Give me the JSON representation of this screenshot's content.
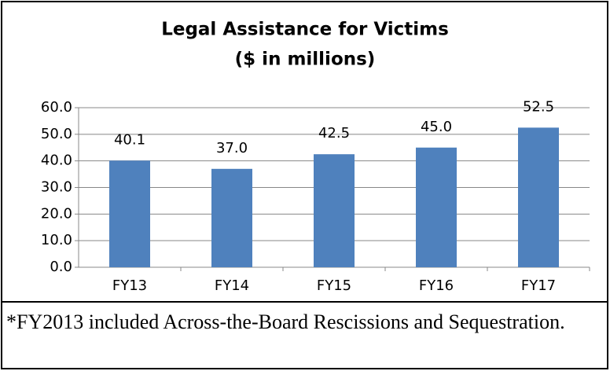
{
  "chart_data": {
    "type": "bar",
    "title": "Legal Assistance for Victims",
    "subtitle": "($ in millions)",
    "categories": [
      "FY13",
      "FY14",
      "FY15",
      "FY16",
      "FY17"
    ],
    "values": [
      40.1,
      37.0,
      42.5,
      45.0,
      52.5
    ],
    "value_labels": [
      "40.1",
      "37.0",
      "42.5",
      "45.0",
      "52.5"
    ],
    "color": "#4f81bd",
    "ylim": [
      0,
      60
    ],
    "yticks": [
      {
        "value": 0,
        "label": "0.0"
      },
      {
        "value": 10,
        "label": "10.0"
      },
      {
        "value": 20,
        "label": "20.0"
      },
      {
        "value": 30,
        "label": "30.0"
      },
      {
        "value": 40,
        "label": "40.0"
      },
      {
        "value": 50,
        "label": "50.0"
      },
      {
        "value": 60,
        "label": "60.0"
      }
    ],
    "grid": true
  },
  "footnote": "*FY2013 included Across-the-Board Rescissions and Sequestration."
}
